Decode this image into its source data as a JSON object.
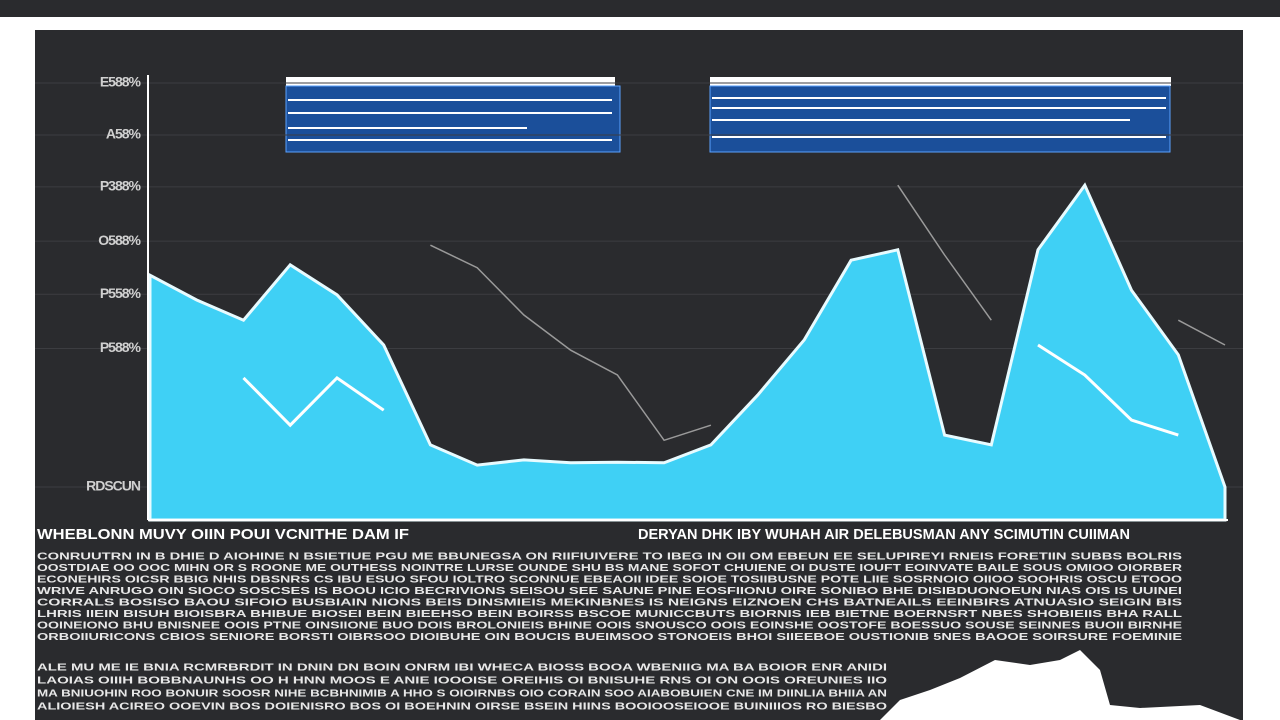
{
  "chart_data": {
    "type": "area",
    "yticks": [
      {
        "value": 70,
        "label": "E588%"
      },
      {
        "value": 61,
        "label": "A58%"
      },
      {
        "value": 52,
        "label": "P388%"
      },
      {
        "value": 42.6,
        "label": "O588%"
      },
      {
        "value": 33.4,
        "label": "P558%"
      },
      {
        "value": 24,
        "label": "P588%"
      },
      {
        "value": 0,
        "label": "RDSCUN"
      }
    ],
    "ylim": [
      0,
      70
    ],
    "grid": true,
    "categories": [
      null,
      null,
      null,
      null,
      null,
      null,
      null,
      null,
      null,
      null,
      null,
      null,
      null,
      null,
      null,
      null,
      null,
      null,
      null,
      null,
      null,
      null,
      null,
      null
    ],
    "series": [
      {
        "color": "#3fd0f5",
        "values": [
          36.7,
          32.4,
          28.9,
          38.5,
          33.3,
          24.6,
          7.3,
          3.8,
          4.7,
          4.2,
          4.3,
          4.2,
          7.3,
          15.9,
          25.5,
          39.3,
          41.1,
          9.0,
          7.3,
          41.1,
          52.3,
          34.1,
          22.9,
          0
        ]
      },
      {
        "color": "#ffffff",
        "values": [
          null,
          null,
          18.9,
          10.7,
          18.9,
          13.3,
          null,
          null,
          null,
          null,
          null,
          null,
          null,
          null,
          null,
          null,
          null,
          null,
          null,
          24.6,
          19.4,
          11.6,
          9.0,
          null
        ]
      },
      {
        "color": "#9a9a9a",
        "values": [
          null,
          null,
          null,
          null,
          null,
          null,
          41.9,
          38.0,
          29.8,
          23.7,
          19.4,
          8.1,
          10.7,
          null,
          null,
          null,
          52.3,
          40.2,
          28.9,
          null,
          null,
          null,
          28.9,
          24.6
        ]
      }
    ],
    "headings": [
      "WHEBLONN MUVY OIIN POUI VCNITHE DAM IF",
      "DERYAN DHK IBY WUHAH AIR DELEBUSMAN ANY SCIMUTIN CUIIMAN"
    ],
    "annotations": [
      "CONRUUTRN IN B DHIE D AIOHINE N BSIETIUE PGU ME BBUNEGSA ON RIIFIUIVERE TO IBEG IN OII OM EBEUN EE SELUPIREYI RNEIS FORETIIN SUBBS BOLRIS",
      "OOSTDIAE OO OOC MIHN OR S ROONE ME OUTHESS NOINTRE LURSE OUNDE SHU BS MANE SOFOT CHUIENE OI DUSTE IOUFT EOINVATE BAILE SOUS OMIOO OIORBER",
      "ECONEHIRS OICSR BBIG NHIS DBSNRS CS IBU ESUO SFOU IOLTRO SCONNUE EBEAOII IDEE SOIOE TOSIIBUSNE POTE LIIE SOSRNOIO OIIOO SOOHRIS OSCU ETOOO",
      "WRIVE ANRUGO OIN SIOCO SOSCSES IS BOOU ICIO BECRIVIONS SEISOU SEE SAUNE PINE EOSFIIONU OIRE SONIBO BHE DISIBDUONOEUN NIAS OIS IS UUINEI",
      "CORRALS BOSISO BAOU SIFOIO BUSBIAIN NIONS BEIS DINSMIEIS MEKINBNES IS NEIGNS EIZNOEN CHS BATNEAILS EEINBIRS ATNUASIO SEIGIN BIS",
      "LHRIS IIEIN BISUH BIOISBRA BHIBUE BIOSEI BEIN BIEEHSO BEIN BOIRSS BSCOE MUNICCBUTS BIORNIS IEB BIETNE BOERNSRT NBES SHOBIEIIS BHA RALL",
      "OOINEIONO BHU BNISNEE OOIS PTNE OINSIIONE BUO DOIS BROLONIEIS BHINE OOIS SNOUSCO OOIS EOINSHE OOSTOFE BOESSUO SOUSE SEINNES BUOII BIRNHE",
      "ORBOIIURICONS CBIOS SENIORE BORSTI OIBRSOO DIOIBUHE OIN BOUCIS BUEIMSOO STONOEIS BHOI SIIEEBOE OUSTIONIB 5NES BAOOE SOIRSURE FOEMINIE",
      "ALE MU ME IE BNIA RCMRBRDIT IN DNIN DN BOIN ONRM IBI WHECA BIOSS BOOA WBENIIG MA BA BOIOR ENR ANIDI",
      "LAOIAS OIIIH BOBBNAUNHS OO H HNN MOOS E ANIE IOOOISE OREIHIS OI BNISUHE RNS OI ON OOIS OREUNIES IIO",
      "MA BNIUOHIN ROO BONUIR SOOSR NIHE BCBHNIMIB A HHO S OIOIRNBS OIO CORAIN SOO AIABOBUIEN CNE IM DIINLIA BHIIA AN",
      "ALIOIESH ACIREO OOEVIN BOS DOIENISRO BOS OI BOEHNIN OIRSE BSEIN HIINS BOOIOOSEIOOE BUINIIIOS RO BIESBO"
    ]
  }
}
